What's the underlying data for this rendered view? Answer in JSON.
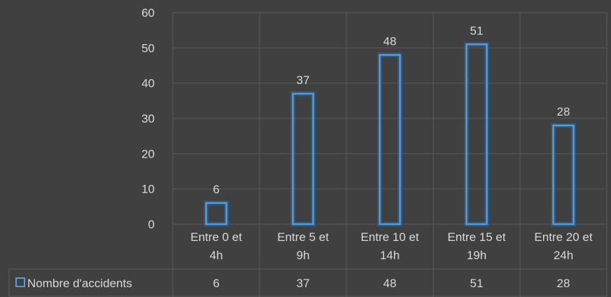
{
  "chart_data": {
    "type": "bar",
    "categories": [
      [
        "Entre 0 et",
        "4h"
      ],
      [
        "Entre 5 et",
        "9h"
      ],
      [
        "Entre 10 et",
        "14h"
      ],
      [
        "Entre 15 et",
        "19h"
      ],
      [
        "Entre 20 et",
        "24h"
      ]
    ],
    "series": [
      {
        "name": "Nombre d'accidents",
        "values": [
          6,
          37,
          48,
          51,
          28
        ]
      }
    ],
    "ylim": [
      0,
      60
    ],
    "yticks": [
      0,
      10,
      20,
      30,
      40,
      50,
      60
    ],
    "grid": true,
    "data_table": true,
    "colors": {
      "bar": "#5b9bd5",
      "background": "#404040",
      "grid": "#5a5a5a"
    }
  }
}
